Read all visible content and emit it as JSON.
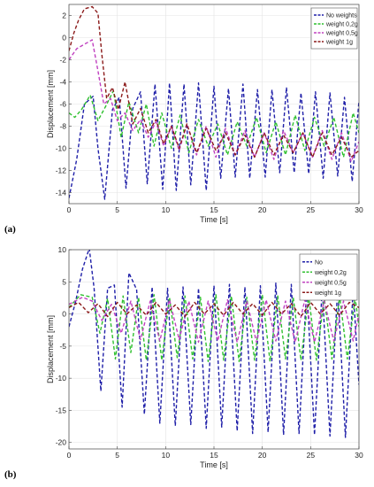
{
  "chart_data": [
    {
      "type": "line",
      "panel_label": "(a)",
      "xlabel": "Time [s]",
      "ylabel": "Displacement [mm]",
      "xlim": [
        0,
        30
      ],
      "ylim": [
        -15,
        3
      ],
      "xticks": [
        0,
        5,
        10,
        15,
        20,
        25,
        30
      ],
      "yticks": [
        2,
        0,
        -2,
        -4,
        -6,
        -8,
        -10,
        -12,
        -14
      ],
      "grid": true,
      "legend_position": "top-right",
      "series": [
        {
          "name": "No weights",
          "color": "#1f1fa8",
          "x": [
            0,
            0.8,
            1.6,
            2.5,
            3.0,
            3.7,
            4.5,
            5.2,
            5.9,
            6.6,
            7.4,
            8.1,
            8.9,
            9.7,
            10.4,
            11.1,
            11.9,
            12.6,
            13.4,
            14.2,
            15.0,
            15.7,
            16.5,
            17.2,
            18.0,
            18.7,
            19.5,
            20.3,
            21.0,
            21.8,
            22.5,
            23.3,
            24.0,
            24.8,
            25.5,
            26.3,
            27.0,
            27.8,
            28.5,
            29.3,
            30.0
          ],
          "y": [
            -14.5,
            -11.0,
            -6.0,
            -5.3,
            -10.0,
            -14.6,
            -6.5,
            -5.4,
            -13.6,
            -6.4,
            -4.9,
            -13.2,
            -4.2,
            -13.7,
            -4.1,
            -13.8,
            -4.2,
            -13.3,
            -4.1,
            -13.8,
            -4.4,
            -12.7,
            -4.6,
            -12.6,
            -4.2,
            -12.7,
            -4.7,
            -12.6,
            -4.7,
            -12.2,
            -4.5,
            -12.2,
            -5.0,
            -12.3,
            -4.9,
            -12.7,
            -5.0,
            -12.5,
            -5.4,
            -13.0,
            -5.7
          ]
        },
        {
          "name": "weight 0,2g",
          "color": "#2fc02f",
          "x": [
            0,
            0.6,
            1.3,
            2.2,
            3.0,
            3.8,
            4.6,
            5.4,
            6.2,
            7.2,
            8.0,
            8.8,
            9.6,
            10.6,
            11.5,
            12.4,
            13.4,
            14.4,
            15.4,
            16.4,
            17.4,
            18.4,
            19.4,
            20.4,
            21.4,
            22.4,
            23.4,
            24.4,
            25.4,
            26.4,
            27.4,
            28.4,
            29.4,
            30.0
          ],
          "y": [
            -6.8,
            -7.2,
            -6.5,
            -5.2,
            -7.5,
            -6.2,
            -4.8,
            -9.0,
            -5.8,
            -8.6,
            -6.0,
            -9.8,
            -6.8,
            -10.0,
            -7.0,
            -10.4,
            -7.4,
            -9.8,
            -7.8,
            -10.6,
            -7.6,
            -9.8,
            -7.2,
            -10.4,
            -7.6,
            -10.6,
            -7.0,
            -10.2,
            -7.2,
            -9.8,
            -7.2,
            -10.8,
            -6.8,
            -8.6
          ]
        },
        {
          "name": "weight 0,5g",
          "color": "#c040c0",
          "x": [
            0,
            0.8,
            1.6,
            2.4,
            3.0,
            3.6,
            4.3,
            5.0,
            5.8,
            6.6,
            7.4,
            8.2,
            9.0,
            9.8,
            10.6,
            11.4,
            12.2,
            13.2,
            14.2,
            15.2,
            16.2,
            17.2,
            18.2,
            19.2,
            20.2,
            21.2,
            22.2,
            23.2,
            24.2,
            25.2,
            26.2,
            27.2,
            28.2,
            29.2,
            30.0
          ],
          "y": [
            -2.0,
            -1.0,
            -0.6,
            -0.2,
            -3.0,
            -6.0,
            -5.5,
            -7.5,
            -6.8,
            -8.4,
            -7.4,
            -9.0,
            -7.6,
            -9.8,
            -8.0,
            -10.2,
            -7.8,
            -10.6,
            -8.0,
            -10.8,
            -8.2,
            -10.6,
            -8.4,
            -10.8,
            -8.6,
            -11.0,
            -8.4,
            -10.4,
            -8.6,
            -10.8,
            -8.4,
            -11.0,
            -8.6,
            -11.2,
            -9.4
          ]
        },
        {
          "name": "weight 1g",
          "color": "#8b1a1a",
          "x": [
            0,
            0.5,
            1.0,
            1.6,
            2.4,
            3.0,
            3.4,
            3.9,
            4.5,
            5.1,
            5.8,
            6.6,
            7.4,
            8.2,
            9.0,
            9.8,
            10.6,
            11.4,
            12.2,
            13.2,
            14.2,
            15.2,
            16.2,
            17.2,
            18.2,
            19.2,
            20.2,
            21.2,
            22.2,
            23.2,
            24.2,
            25.2,
            26.2,
            27.2,
            28.2,
            29.2,
            30.0
          ],
          "y": [
            -1.2,
            0.4,
            1.6,
            2.6,
            2.8,
            2.2,
            -1.5,
            -5.5,
            -4.5,
            -6.5,
            -4.0,
            -7.8,
            -6.4,
            -8.6,
            -7.4,
            -9.6,
            -8.0,
            -10.0,
            -7.8,
            -10.4,
            -8.2,
            -10.2,
            -8.6,
            -10.6,
            -8.8,
            -10.8,
            -8.6,
            -10.6,
            -8.8,
            -10.4,
            -8.6,
            -10.8,
            -8.6,
            -10.6,
            -9.0,
            -10.8,
            -10.2
          ]
        }
      ]
    },
    {
      "type": "line",
      "panel_label": "(b)",
      "xlabel": "Time [s]",
      "ylabel": "Displacement [mm]",
      "xlim": [
        0,
        30
      ],
      "ylim": [
        -21,
        10
      ],
      "xticks": [
        0,
        5,
        10,
        15,
        20,
        25,
        30
      ],
      "yticks": [
        10,
        5,
        0,
        -5,
        -10,
        -15,
        -20
      ],
      "grid": true,
      "legend_position": "top-right",
      "series": [
        {
          "name": "No",
          "color": "#1f1fa8",
          "x": [
            0,
            0.7,
            1.4,
            2.1,
            2.6,
            3.3,
            4.0,
            4.7,
            5.5,
            6.2,
            7.0,
            7.8,
            8.6,
            9.4,
            10.2,
            11.0,
            11.8,
            12.6,
            13.4,
            14.2,
            15.0,
            15.8,
            16.6,
            17.4,
            18.2,
            19.0,
            19.8,
            20.6,
            21.4,
            22.2,
            23.0,
            23.8,
            24.6,
            25.4,
            26.2,
            27.0,
            27.8,
            28.6,
            29.4,
            30.0
          ],
          "y": [
            -2.0,
            2.0,
            7.0,
            10.2,
            4.0,
            -12.0,
            4.0,
            4.5,
            -14.5,
            6.4,
            3.8,
            -15.6,
            4.2,
            -17.0,
            4.0,
            -17.4,
            4.2,
            -17.2,
            4.0,
            -17.8,
            4.4,
            -17.6,
            4.6,
            -18.2,
            4.2,
            -18.6,
            4.4,
            -18.4,
            4.8,
            -18.8,
            4.6,
            -18.6,
            4.4,
            -18.8,
            4.2,
            -19.0,
            4.2,
            -19.2,
            4.0,
            -11.0
          ]
        },
        {
          "name": "weight 0,2g",
          "color": "#2fc02f",
          "x": [
            0,
            1.2,
            2.4,
            3.2,
            4.0,
            4.8,
            5.6,
            6.4,
            7.2,
            8.0,
            8.8,
            9.6,
            10.4,
            11.2,
            12.0,
            12.8,
            13.6,
            14.4,
            15.2,
            16.0,
            16.8,
            17.6,
            18.4,
            19.2,
            20.0,
            20.8,
            21.6,
            22.4,
            23.2,
            24.0,
            24.8,
            25.6,
            26.4,
            27.2,
            28.0,
            28.8,
            29.6,
            30.0
          ],
          "y": [
            1.0,
            3.0,
            2.6,
            -3.0,
            2.4,
            -7.0,
            2.8,
            -6.0,
            2.6,
            -7.2,
            3.0,
            -7.2,
            2.6,
            -6.8,
            2.8,
            -7.0,
            2.6,
            -7.4,
            3.0,
            -7.2,
            2.8,
            -7.4,
            2.6,
            -7.2,
            3.0,
            -7.4,
            2.8,
            -7.0,
            2.6,
            -7.2,
            2.8,
            -7.2,
            2.6,
            -7.0,
            2.8,
            -7.0,
            2.6,
            -2.0
          ]
        },
        {
          "name": "weight 0,5g",
          "color": "#c040c0",
          "x": [
            0,
            1.4,
            2.4,
            3.4,
            4.4,
            5.4,
            6.4,
            7.4,
            8.4,
            9.4,
            10.4,
            11.4,
            12.4,
            13.4,
            14.4,
            15.4,
            16.4,
            17.4,
            18.4,
            19.4,
            20.4,
            21.4,
            22.4,
            23.4,
            24.4,
            25.4,
            26.4,
            27.4,
            28.4,
            29.4,
            30.0
          ],
          "y": [
            1.5,
            2.6,
            2.0,
            -1.0,
            1.5,
            -3.0,
            2.0,
            -4.0,
            2.0,
            -4.2,
            2.2,
            -4.0,
            2.0,
            -4.4,
            2.0,
            -4.2,
            2.2,
            -4.4,
            2.0,
            -4.4,
            2.2,
            -4.2,
            2.0,
            -4.4,
            2.2,
            -4.4,
            2.0,
            -4.2,
            2.0,
            -4.2,
            0.0
          ]
        },
        {
          "name": "weight 1g",
          "color": "#8b1a1a",
          "x": [
            0,
            1.0,
            2.0,
            3.0,
            4.0,
            5.0,
            6.0,
            7.0,
            8.0,
            9.0,
            10.0,
            11.0,
            12.0,
            13.0,
            14.0,
            15.0,
            16.0,
            17.0,
            18.0,
            19.0,
            20.0,
            21.0,
            22.0,
            23.0,
            24.0,
            25.0,
            26.0,
            27.0,
            28.0,
            29.0,
            30.0
          ],
          "y": [
            1.0,
            1.8,
            0.2,
            1.6,
            -0.4,
            1.8,
            0.0,
            1.4,
            -0.2,
            1.8,
            0.0,
            1.4,
            -0.4,
            1.8,
            0.0,
            1.6,
            -0.2,
            1.8,
            0.0,
            1.6,
            -0.2,
            1.8,
            0.0,
            1.6,
            -0.4,
            1.8,
            0.0,
            1.6,
            -0.2,
            1.8,
            1.0
          ]
        }
      ]
    }
  ]
}
